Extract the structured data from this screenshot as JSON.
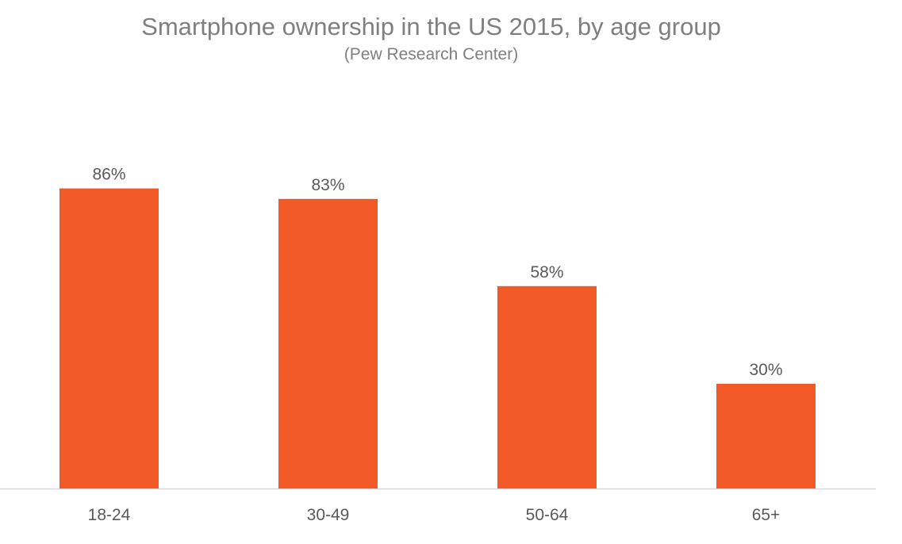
{
  "chart_data": {
    "type": "bar",
    "title": "Smartphone ownership in the US 2015, by age group",
    "subtitle": "(Pew Research Center)",
    "categories": [
      "18-24",
      "30-49",
      "50-64",
      "65+"
    ],
    "values": [
      86,
      83,
      58,
      30
    ],
    "data_labels": [
      "86%",
      "83%",
      "58%",
      "30%"
    ],
    "ylim": [
      0,
      100
    ],
    "grid": false,
    "legend": "none",
    "colors": {
      "bar": "#F15A27",
      "title": "#7F7F7F",
      "label": "#595959",
      "axis": "#D9D9D9"
    }
  }
}
